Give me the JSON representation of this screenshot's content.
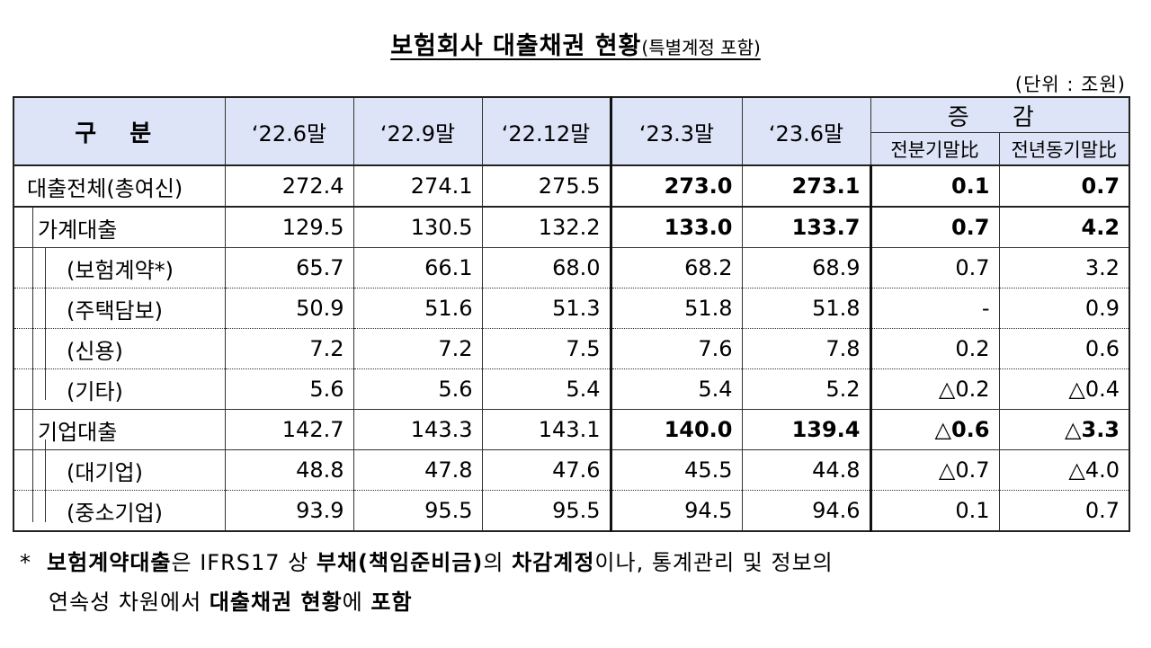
{
  "title": {
    "main": "보험회사 대출채권 현황",
    "sub": "(특별계정 포함)"
  },
  "unit": "(단위 : 조원)",
  "table": {
    "header": {
      "category": "구 분",
      "periods": [
        "‘22.6말",
        "‘22.9말",
        "‘22.12말",
        "‘23.3말",
        "‘23.6말"
      ],
      "change": "증 감",
      "change_sub": [
        "전분기말比",
        "전년동기말比"
      ]
    },
    "rows": [
      {
        "label": "대출전체(총여신)",
        "values": [
          "272.4",
          "274.1",
          "275.5",
          "273.0",
          "273.1",
          "0.1",
          "0.7"
        ]
      },
      {
        "label": "가계대출",
        "values": [
          "129.5",
          "130.5",
          "132.2",
          "133.0",
          "133.7",
          "0.7",
          "4.2"
        ]
      },
      {
        "label": "(보험계약*)",
        "values": [
          "65.7",
          "66.1",
          "68.0",
          "68.2",
          "68.9",
          "0.7",
          "3.2"
        ]
      },
      {
        "label": "(주택담보)",
        "values": [
          "50.9",
          "51.6",
          "51.3",
          "51.8",
          "51.8",
          "-",
          "0.9"
        ]
      },
      {
        "label": "(신용)",
        "values": [
          "7.2",
          "7.2",
          "7.5",
          "7.6",
          "7.8",
          "0.2",
          "0.6"
        ]
      },
      {
        "label": "(기타)",
        "values": [
          "5.6",
          "5.6",
          "5.4",
          "5.4",
          "5.2",
          "△0.2",
          "△0.4"
        ]
      },
      {
        "label": "기업대출",
        "values": [
          "142.7",
          "143.3",
          "143.1",
          "140.0",
          "139.4",
          "△0.6",
          "△3.3"
        ]
      },
      {
        "label": "(대기업)",
        "values": [
          "48.8",
          "47.8",
          "47.6",
          "45.5",
          "44.8",
          "△0.7",
          "△4.0"
        ]
      },
      {
        "label": "(중소기업)",
        "values": [
          "93.9",
          "95.5",
          "95.5",
          "94.5",
          "94.6",
          "0.1",
          "0.7"
        ]
      }
    ]
  },
  "footnote": {
    "marker": "*",
    "parts": [
      "보험계약대출",
      "은 IFRS17 상 ",
      "부채(책임준비금)",
      "의 ",
      "차감계정",
      "이나, 통계관리 및 정보의"
    ],
    "line2": [
      "연속성 차원에서 ",
      "대출채권 현황",
      "에 ",
      "포함"
    ]
  },
  "colors": {
    "header_bg": "#dde4f7",
    "border": "#222222"
  }
}
